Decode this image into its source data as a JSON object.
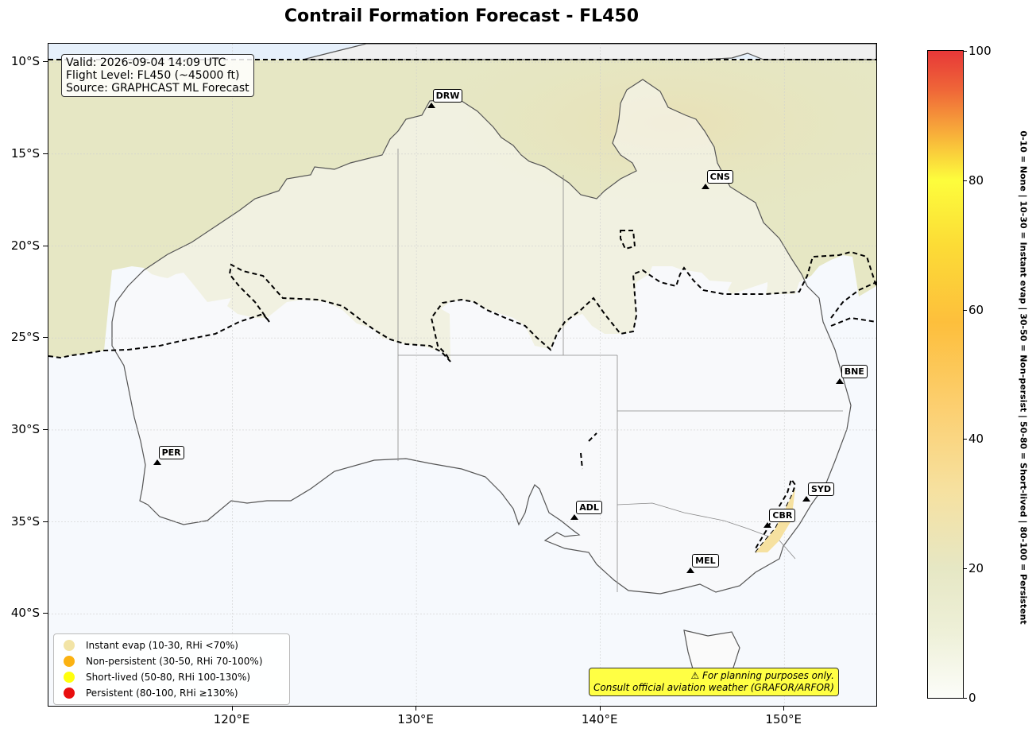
{
  "title": "Contrail Formation Forecast - FL450",
  "info": {
    "valid": "Valid: 2026-09-04 14:09 UTC",
    "flight_level": "Flight Level: FL450 (~45000 ft)",
    "source": "Source: GRAPHCAST ML Forecast"
  },
  "map": {
    "lon_range": [
      110,
      155
    ],
    "lat_range": [
      -45,
      -9
    ],
    "lat_ticks": [
      {
        "value": -10,
        "label": "10°S"
      },
      {
        "value": -15,
        "label": "15°S"
      },
      {
        "value": -20,
        "label": "20°S"
      },
      {
        "value": -25,
        "label": "25°S"
      },
      {
        "value": -30,
        "label": "30°S"
      },
      {
        "value": -35,
        "label": "35°S"
      },
      {
        "value": -40,
        "label": "40°S"
      }
    ],
    "lon_ticks": [
      {
        "value": 120,
        "label": "120°E"
      },
      {
        "value": 130,
        "label": "130°E"
      },
      {
        "value": 140,
        "label": "140°E"
      },
      {
        "value": 150,
        "label": "150°E"
      }
    ],
    "gridlines": true,
    "colors": {
      "low_potential_zone": "#e6e7c4",
      "ocean": "#f6f9fd",
      "land": "#fafafa",
      "coastline": "#555555",
      "boundary_line": "#000000"
    }
  },
  "cities": [
    {
      "code": "DRW",
      "lon": 130.8,
      "lat": -12.5
    },
    {
      "code": "CNS",
      "lon": 145.7,
      "lat": -16.9
    },
    {
      "code": "BNE",
      "lon": 153.0,
      "lat": -27.5
    },
    {
      "code": "PER",
      "lon": 115.9,
      "lat": -31.9
    },
    {
      "code": "ADL",
      "lon": 138.6,
      "lat": -34.9
    },
    {
      "code": "SYD",
      "lon": 151.2,
      "lat": -33.9
    },
    {
      "code": "CBR",
      "lon": 149.1,
      "lat": -35.3
    },
    {
      "code": "MEL",
      "lon": 144.9,
      "lat": -37.8
    }
  ],
  "legend": [
    {
      "label": "Instant evap (10-30, RHi <70%)",
      "color": "#f2e4a6"
    },
    {
      "label": "Non-persistent (30-50, RHi 70-100%)",
      "color": "#fbb212"
    },
    {
      "label": "Short-lived (50-80, RHi 100-130%)",
      "color": "#ffff0e"
    },
    {
      "label": "Persistent (80-100, RHi ≥130%)",
      "color": "#e80e0e"
    }
  ],
  "disclaimer": {
    "line1": "⚠ For planning purposes only.",
    "line2": "Consult official aviation weather (GRAFOR/ARFOR)"
  },
  "colorbar": {
    "range": [
      0,
      100
    ],
    "ticks": [
      {
        "value": 0,
        "label": "0"
      },
      {
        "value": 20,
        "label": "20"
      },
      {
        "value": 40,
        "label": "40"
      },
      {
        "value": 60,
        "label": "60"
      },
      {
        "value": 80,
        "label": "80"
      },
      {
        "value": 100,
        "label": "100"
      }
    ],
    "description": "0-10 = None  |  10-30 = Instant evap  |  30-50 = Non-persist  |  50-80 = Short-lived  |  80-100 = Persistent"
  }
}
